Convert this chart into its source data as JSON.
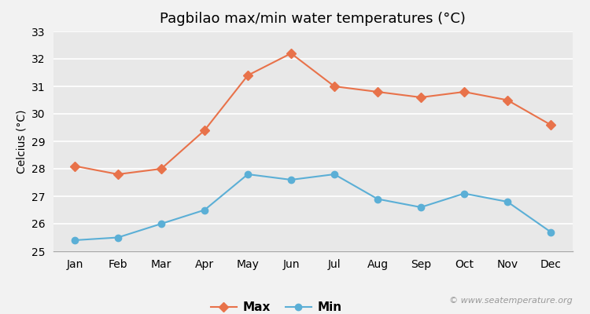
{
  "title": "Pagbilao max/min water temperatures (°C)",
  "ylabel": "Celcius (°C)",
  "months": [
    "Jan",
    "Feb",
    "Mar",
    "Apr",
    "May",
    "Jun",
    "Jul",
    "Aug",
    "Sep",
    "Oct",
    "Nov",
    "Dec"
  ],
  "max_values": [
    28.1,
    27.8,
    28.0,
    29.4,
    31.4,
    32.2,
    31.0,
    30.8,
    30.6,
    30.8,
    30.5,
    29.6
  ],
  "min_values": [
    25.4,
    25.5,
    26.0,
    26.5,
    27.8,
    27.6,
    27.8,
    26.9,
    26.6,
    27.1,
    26.8,
    25.7
  ],
  "max_color": "#e8724a",
  "min_color": "#5bafd6",
  "background_color": "#f2f2f2",
  "plot_bg_color": "#e8e8e8",
  "ylim": [
    25,
    33
  ],
  "yticks": [
    25,
    26,
    27,
    28,
    29,
    30,
    31,
    32,
    33
  ],
  "grid_color": "#ffffff",
  "legend_labels": [
    "Max",
    "Min"
  ],
  "watermark": "© www.seatemperature.org",
  "title_fontsize": 13,
  "axis_fontsize": 10,
  "tick_fontsize": 10,
  "marker_style_max": "D",
  "marker_style_min": "o",
  "marker_size_max": 6,
  "marker_size_min": 6
}
